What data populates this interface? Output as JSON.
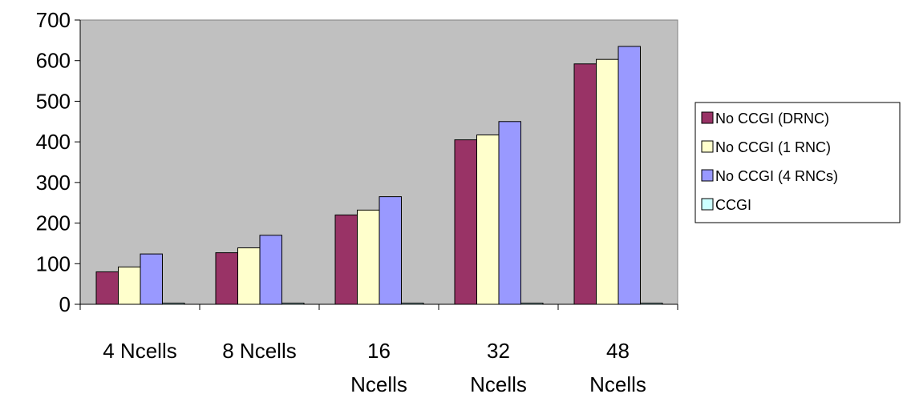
{
  "chart_data": {
    "type": "bar",
    "categories": [
      [
        "4 Ncells"
      ],
      [
        "8 Ncells"
      ],
      [
        "16",
        "Ncells"
      ],
      [
        "32",
        "Ncells"
      ],
      [
        "48",
        "Ncells"
      ]
    ],
    "series": [
      {
        "name": "No CCGI (DRNC)",
        "color": "#993366",
        "values": [
          80,
          127,
          220,
          405,
          592
        ]
      },
      {
        "name": "No CCGI (1 RNC)",
        "color": "#FFFFCC",
        "values": [
          92,
          139,
          232,
          417,
          603
        ]
      },
      {
        "name": "No CCGI (4 RNCs)",
        "color": "#9999FF",
        "values": [
          124,
          170,
          265,
          450,
          635
        ]
      },
      {
        "name": "CCGI",
        "color": "#CCFFFF",
        "values": [
          3,
          3,
          3,
          3,
          3
        ]
      }
    ],
    "yticks": [
      0,
      100,
      200,
      300,
      400,
      500,
      600,
      700
    ],
    "ylim": [
      0,
      700
    ],
    "grid": false,
    "plot_background": "#C0C0C0",
    "legend_position": "right"
  }
}
